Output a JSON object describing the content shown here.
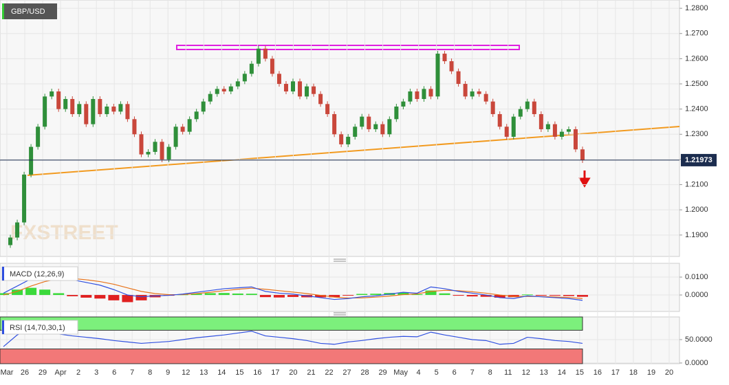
{
  "chart_data": {
    "type": "candlestick",
    "title": "GBP/USD",
    "x": [
      "Mar",
      "26",
      "29",
      "Apr",
      "2",
      "3",
      "6",
      "7",
      "8",
      "9",
      "12",
      "13",
      "14",
      "15",
      "16",
      "17",
      "20",
      "21",
      "22",
      "27",
      "28",
      "29",
      "May",
      "4",
      "5",
      "6",
      "7",
      "8",
      "11",
      "12",
      "13",
      "14",
      "15",
      "16",
      "17",
      "18",
      "19",
      "20"
    ],
    "closes": [
      1.186,
      1.189,
      1.195,
      1.214,
      1.225,
      1.233,
      1.245,
      1.247,
      1.24,
      1.244,
      1.238,
      1.242,
      1.234,
      1.244,
      1.238,
      1.241,
      1.239,
      1.242,
      1.236,
      1.23,
      1.222,
      1.223,
      1.227,
      1.22,
      1.225,
      1.233,
      1.231,
      1.236,
      1.239,
      1.243,
      1.246,
      1.248,
      1.247,
      1.249,
      1.251,
      1.254,
      1.258,
      1.264,
      1.26,
      1.254,
      1.25,
      1.247,
      1.251,
      1.245,
      1.249,
      1.246,
      1.242,
      1.238,
      1.23,
      1.226,
      1.229,
      1.233,
      1.237,
      1.232,
      1.234,
      1.23,
      1.236,
      1.241,
      1.243,
      1.247,
      1.244,
      1.248,
      1.245,
      1.262,
      1.259,
      1.255,
      1.25,
      1.245,
      1.247,
      1.246,
      1.243,
      1.238,
      1.233,
      1.229,
      1.237,
      1.24,
      1.243,
      1.238,
      1.232,
      1.234,
      1.229,
      1.231,
      1.232,
      1.224,
      1.2197
    ],
    "up_color": "#2f8f3a",
    "down_color": "#c9473b",
    "ylim": [
      1.1815,
      1.2833
    ],
    "yticks": [
      {
        "value": 1.28,
        "label": "1.2800"
      },
      {
        "value": 1.27,
        "label": "1.2700"
      },
      {
        "value": 1.26,
        "label": "1.2600"
      },
      {
        "value": 1.25,
        "label": "1.2500"
      },
      {
        "value": 1.24,
        "label": "1.2400"
      },
      {
        "value": 1.23,
        "label": "1.2300"
      },
      {
        "value": 1.22,
        "label": "1.2200"
      },
      {
        "value": 1.21,
        "label": "1.2100"
      },
      {
        "value": 1.2,
        "label": "1.2000"
      },
      {
        "value": 1.19,
        "label": "1.1900"
      }
    ],
    "last_price": {
      "value": 1.21973,
      "label": "1.21973"
    },
    "grid": true,
    "macd": {
      "title": "MACD (12,26,9)",
      "ylim": [
        -0.0092,
        0.0177
      ],
      "yticks": [
        {
          "value": 0.01,
          "label": "0.0100"
        },
        {
          "value": 0,
          "label": "0.0000"
        }
      ],
      "macd_color": "#2f4fe0",
      "signal_color": "#e8731a",
      "macd": [
        0.001,
        0.005,
        0.009,
        0.0105,
        0.01,
        0.0085,
        0.007,
        0.0055,
        0.003,
        0.0,
        -0.001,
        -0.0005,
        -0.0002,
        0.0005,
        0.0015,
        0.0025,
        0.0035,
        0.004,
        0.0045,
        0.002,
        0.001,
        0.0005,
        -0.0005,
        -0.0015,
        -0.0025,
        -0.002,
        -0.001,
        -0.0005,
        0.0005,
        0.0015,
        0.001,
        0.0045,
        0.0035,
        0.002,
        0.001,
        0.0,
        -0.0015,
        -0.002,
        -0.0005,
        -0.001,
        -0.0015,
        -0.002,
        -0.003
      ],
      "signal": [
        0.0,
        0.002,
        0.005,
        0.0075,
        0.009,
        0.0092,
        0.0085,
        0.0075,
        0.006,
        0.004,
        0.002,
        0.0008,
        0.0002,
        0.0002,
        0.0008,
        0.0015,
        0.0024,
        0.0032,
        0.0038,
        0.0032,
        0.0024,
        0.0016,
        0.0008,
        -0.0002,
        -0.0012,
        -0.0017,
        -0.0016,
        -0.0012,
        -0.0006,
        0.0002,
        0.0006,
        0.002,
        0.0026,
        0.0024,
        0.0018,
        0.001,
        0.0,
        -0.0008,
        -0.0008,
        -0.0009,
        -0.0011,
        -0.0014,
        -0.002
      ],
      "histogram": [
        0.001,
        0.003,
        0.004,
        0.003,
        0.001,
        -0.0007,
        -0.0015,
        -0.002,
        -0.003,
        -0.004,
        -0.003,
        -0.0013,
        -0.0004,
        0.0003,
        0.0007,
        0.001,
        0.0011,
        0.0008,
        0.0007,
        -0.0012,
        -0.0014,
        -0.0011,
        -0.0013,
        -0.0013,
        -0.0013,
        -0.0003,
        0.0006,
        0.0007,
        0.0011,
        0.0013,
        0.0004,
        0.0025,
        0.0009,
        -0.0004,
        -0.0008,
        -0.001,
        -0.0015,
        -0.0012,
        0.0003,
        -0.0001,
        -0.0004,
        -0.0006,
        -0.001
      ]
    },
    "rsi": {
      "title": "RSI (14,70,30,1)",
      "ylim": [
        -1.5,
        98.5
      ],
      "overbought": 70,
      "oversold": 30,
      "yticks": [
        {
          "value": 50,
          "label": "50.0000"
        },
        {
          "value": 0,
          "label": "0.0000"
        }
      ],
      "color": "#2f4fe0",
      "values": [
        35,
        60,
        75,
        68,
        62,
        58,
        55,
        52,
        48,
        45,
        42,
        44,
        46,
        50,
        54,
        57,
        60,
        64,
        68,
        58,
        55,
        52,
        48,
        42,
        40,
        45,
        48,
        52,
        55,
        57,
        56,
        66,
        60,
        55,
        50,
        48,
        40,
        42,
        55,
        52,
        48,
        46,
        42
      ]
    }
  }
}
